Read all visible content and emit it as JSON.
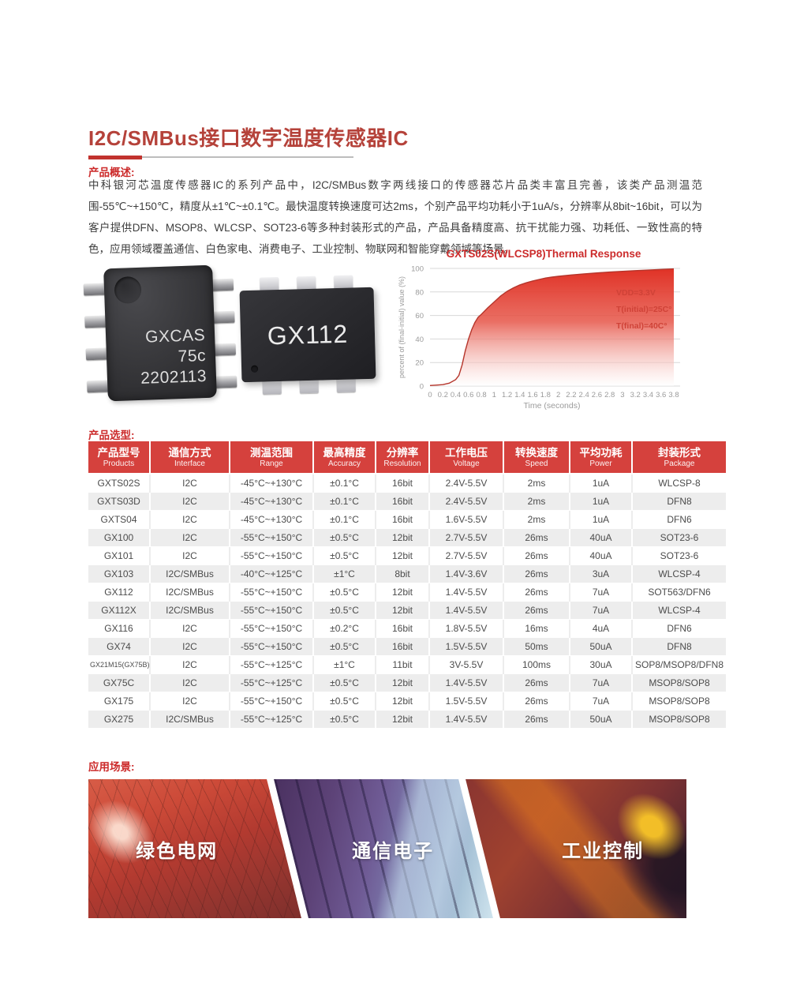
{
  "page": {
    "title": "I2C/SMBus接口数字温度传感器IC",
    "overview_label": "产品概述:",
    "overview_text": "中科银河芯温度传感器IC的系列产品中，I2C/SMBus数字两线接口的传感器芯片品类丰富且完善，该类产品测温范围-55℃~+150℃，精度从±1℃~±0.1℃。最快温度转换速度可达2ms，个别产品平均功耗小于1uA/s，分辨率从8bit~16bit，可以为客户提供DFN、MSOP8、WLCSP、SOT23-6等多种封装形式的产品，产品具备精度高、抗干扰能力强、功耗低、一致性高的特色，应用领域覆盖通信、白色家电、消费电子、工业控制、物联网和智能穿戴领域等场景。",
    "selection_label": "产品选型:",
    "applications_label": "应用场景:"
  },
  "chips": {
    "chip1_lines": [
      "GXCAS",
      "75c",
      "2202113"
    ],
    "chip2_label": "GX112"
  },
  "chart_data": {
    "type": "area",
    "title": "GXTS02S(WLCSP8)Thermal Response",
    "xlabel": "Time (seconds)",
    "ylabel": "percent of (final-initial) value (%)",
    "x_ticks": [
      "0",
      "0.2",
      "0.4",
      "0.6",
      "0.8",
      "1",
      "1.2",
      "1.4",
      "1.6",
      "1.8",
      "2",
      "2.2",
      "2.4",
      "2.6",
      "2.8",
      "3",
      "3.2",
      "3.4",
      "3.6",
      "3.8"
    ],
    "y_ticks": [
      0,
      20,
      40,
      60,
      80,
      100
    ],
    "xlim": [
      0,
      3.8
    ],
    "ylim": [
      0,
      100
    ],
    "grid": true,
    "legend_position": "none",
    "annotations": [
      "VDD=3.3V",
      "T(initial)=25C°",
      "T(final)=40C°"
    ],
    "series": [
      {
        "name": "GXTS02S thermal response",
        "points": [
          [
            0,
            0.5
          ],
          [
            0.1,
            0.8
          ],
          [
            0.2,
            1.2
          ],
          [
            0.3,
            2.5
          ],
          [
            0.4,
            5.5
          ],
          [
            0.45,
            9
          ],
          [
            0.5,
            18
          ],
          [
            0.55,
            30
          ],
          [
            0.6,
            40
          ],
          [
            0.65,
            48
          ],
          [
            0.7,
            54
          ],
          [
            0.75,
            58.5
          ],
          [
            0.8,
            61
          ],
          [
            0.9,
            66.5
          ],
          [
            1.0,
            71.5
          ],
          [
            1.1,
            76.5
          ],
          [
            1.2,
            80.5
          ],
          [
            1.3,
            83.5
          ],
          [
            1.4,
            86
          ],
          [
            1.5,
            87.8
          ],
          [
            1.6,
            89.3
          ],
          [
            1.7,
            90.6
          ],
          [
            1.8,
            91.8
          ],
          [
            1.9,
            92.6
          ],
          [
            2.0,
            93.3
          ],
          [
            2.2,
            94.4
          ],
          [
            2.4,
            95.4
          ],
          [
            2.6,
            96.2
          ],
          [
            2.8,
            96.9
          ],
          [
            3.0,
            97.5
          ],
          [
            3.2,
            98.1
          ],
          [
            3.4,
            98.6
          ],
          [
            3.6,
            99.1
          ],
          [
            3.8,
            99.6
          ]
        ]
      }
    ]
  },
  "table": {
    "columns": [
      {
        "cn": "产品型号",
        "en": "Products"
      },
      {
        "cn": "通信方式",
        "en": "Interface"
      },
      {
        "cn": "测温范围",
        "en": "Range"
      },
      {
        "cn": "最高精度",
        "en": "Accuracy"
      },
      {
        "cn": "分辨率",
        "en": "Resolution"
      },
      {
        "cn": "工作电压",
        "en": "Voltage"
      },
      {
        "cn": "转换速度",
        "en": "Speed"
      },
      {
        "cn": "平均功耗",
        "en": "Power"
      },
      {
        "cn": "封装形式",
        "en": "Package"
      }
    ],
    "rows": [
      [
        "GXTS02S",
        "I2C",
        "-45°C~+130°C",
        "±0.1°C",
        "16bit",
        "2.4V-5.5V",
        "2ms",
        "1uA",
        "WLCSP-8"
      ],
      [
        "GXTS03D",
        "I2C",
        "-45°C~+130°C",
        "±0.1°C",
        "16bit",
        "2.4V-5.5V",
        "2ms",
        "1uA",
        "DFN8"
      ],
      [
        "GXTS04",
        "I2C",
        "-45°C~+130°C",
        "±0.1°C",
        "16bit",
        "1.6V-5.5V",
        "2ms",
        "1uA",
        "DFN6"
      ],
      [
        "GX100",
        "I2C",
        "-55°C~+150°C",
        "±0.5°C",
        "12bit",
        "2.7V-5.5V",
        "26ms",
        "40uA",
        "SOT23-6"
      ],
      [
        "GX101",
        "I2C",
        "-55°C~+150°C",
        "±0.5°C",
        "12bit",
        "2.7V-5.5V",
        "26ms",
        "40uA",
        "SOT23-6"
      ],
      [
        "GX103",
        "I2C/SMBus",
        "-40°C~+125°C",
        "±1°C",
        "8bit",
        "1.4V-3.6V",
        "26ms",
        "3uA",
        "WLCSP-4"
      ],
      [
        "GX112",
        "I2C/SMBus",
        "-55°C~+150°C",
        "±0.5°C",
        "12bit",
        "1.4V-5.5V",
        "26ms",
        "7uA",
        "SOT563/DFN6"
      ],
      [
        "GX112X",
        "I2C/SMBus",
        "-55°C~+150°C",
        "±0.5°C",
        "12bit",
        "1.4V-5.5V",
        "26ms",
        "7uA",
        "WLCSP-4"
      ],
      [
        "GX116",
        "I2C",
        "-55°C~+150°C",
        "±0.2°C",
        "16bit",
        "1.8V-5.5V",
        "16ms",
        "4uA",
        "DFN6"
      ],
      [
        "GX74",
        "I2C",
        "-55°C~+150°C",
        "±0.5°C",
        "16bit",
        "1.5V-5.5V",
        "50ms",
        "50uA",
        "DFN8"
      ],
      [
        "GX21M15(GX75B)",
        "I2C",
        "-55°C~+125°C",
        "±1°C",
        "11bit",
        "3V-5.5V",
        "100ms",
        "30uA",
        "SOP8/MSOP8/DFN8"
      ],
      [
        "GX75C",
        "I2C",
        "-55°C~+125°C",
        "±0.5°C",
        "12bit",
        "1.4V-5.5V",
        "26ms",
        "7uA",
        "MSOP8/SOP8"
      ],
      [
        "GX175",
        "I2C",
        "-55°C~+150°C",
        "±0.5°C",
        "12bit",
        "1.5V-5.5V",
        "26ms",
        "7uA",
        "MSOP8/SOP8"
      ],
      [
        "GX275",
        "I2C/SMBus",
        "-55°C~+125°C",
        "±0.5°C",
        "12bit",
        "1.4V-5.5V",
        "26ms",
        "50uA",
        "MSOP8/SOP8"
      ]
    ]
  },
  "applications": [
    {
      "label": "绿色电网"
    },
    {
      "label": "通信电子"
    },
    {
      "label": "工业控制"
    }
  ],
  "colors": {
    "title_red": "#b5423a",
    "accent_red": "#cc2b2b",
    "table_header_red": "#d5413d",
    "row_alt_gray": "#ededed",
    "chart_line": "#b5352b",
    "chart_fill_top": "#e03226",
    "grid_gray": "#d8d8d8"
  }
}
